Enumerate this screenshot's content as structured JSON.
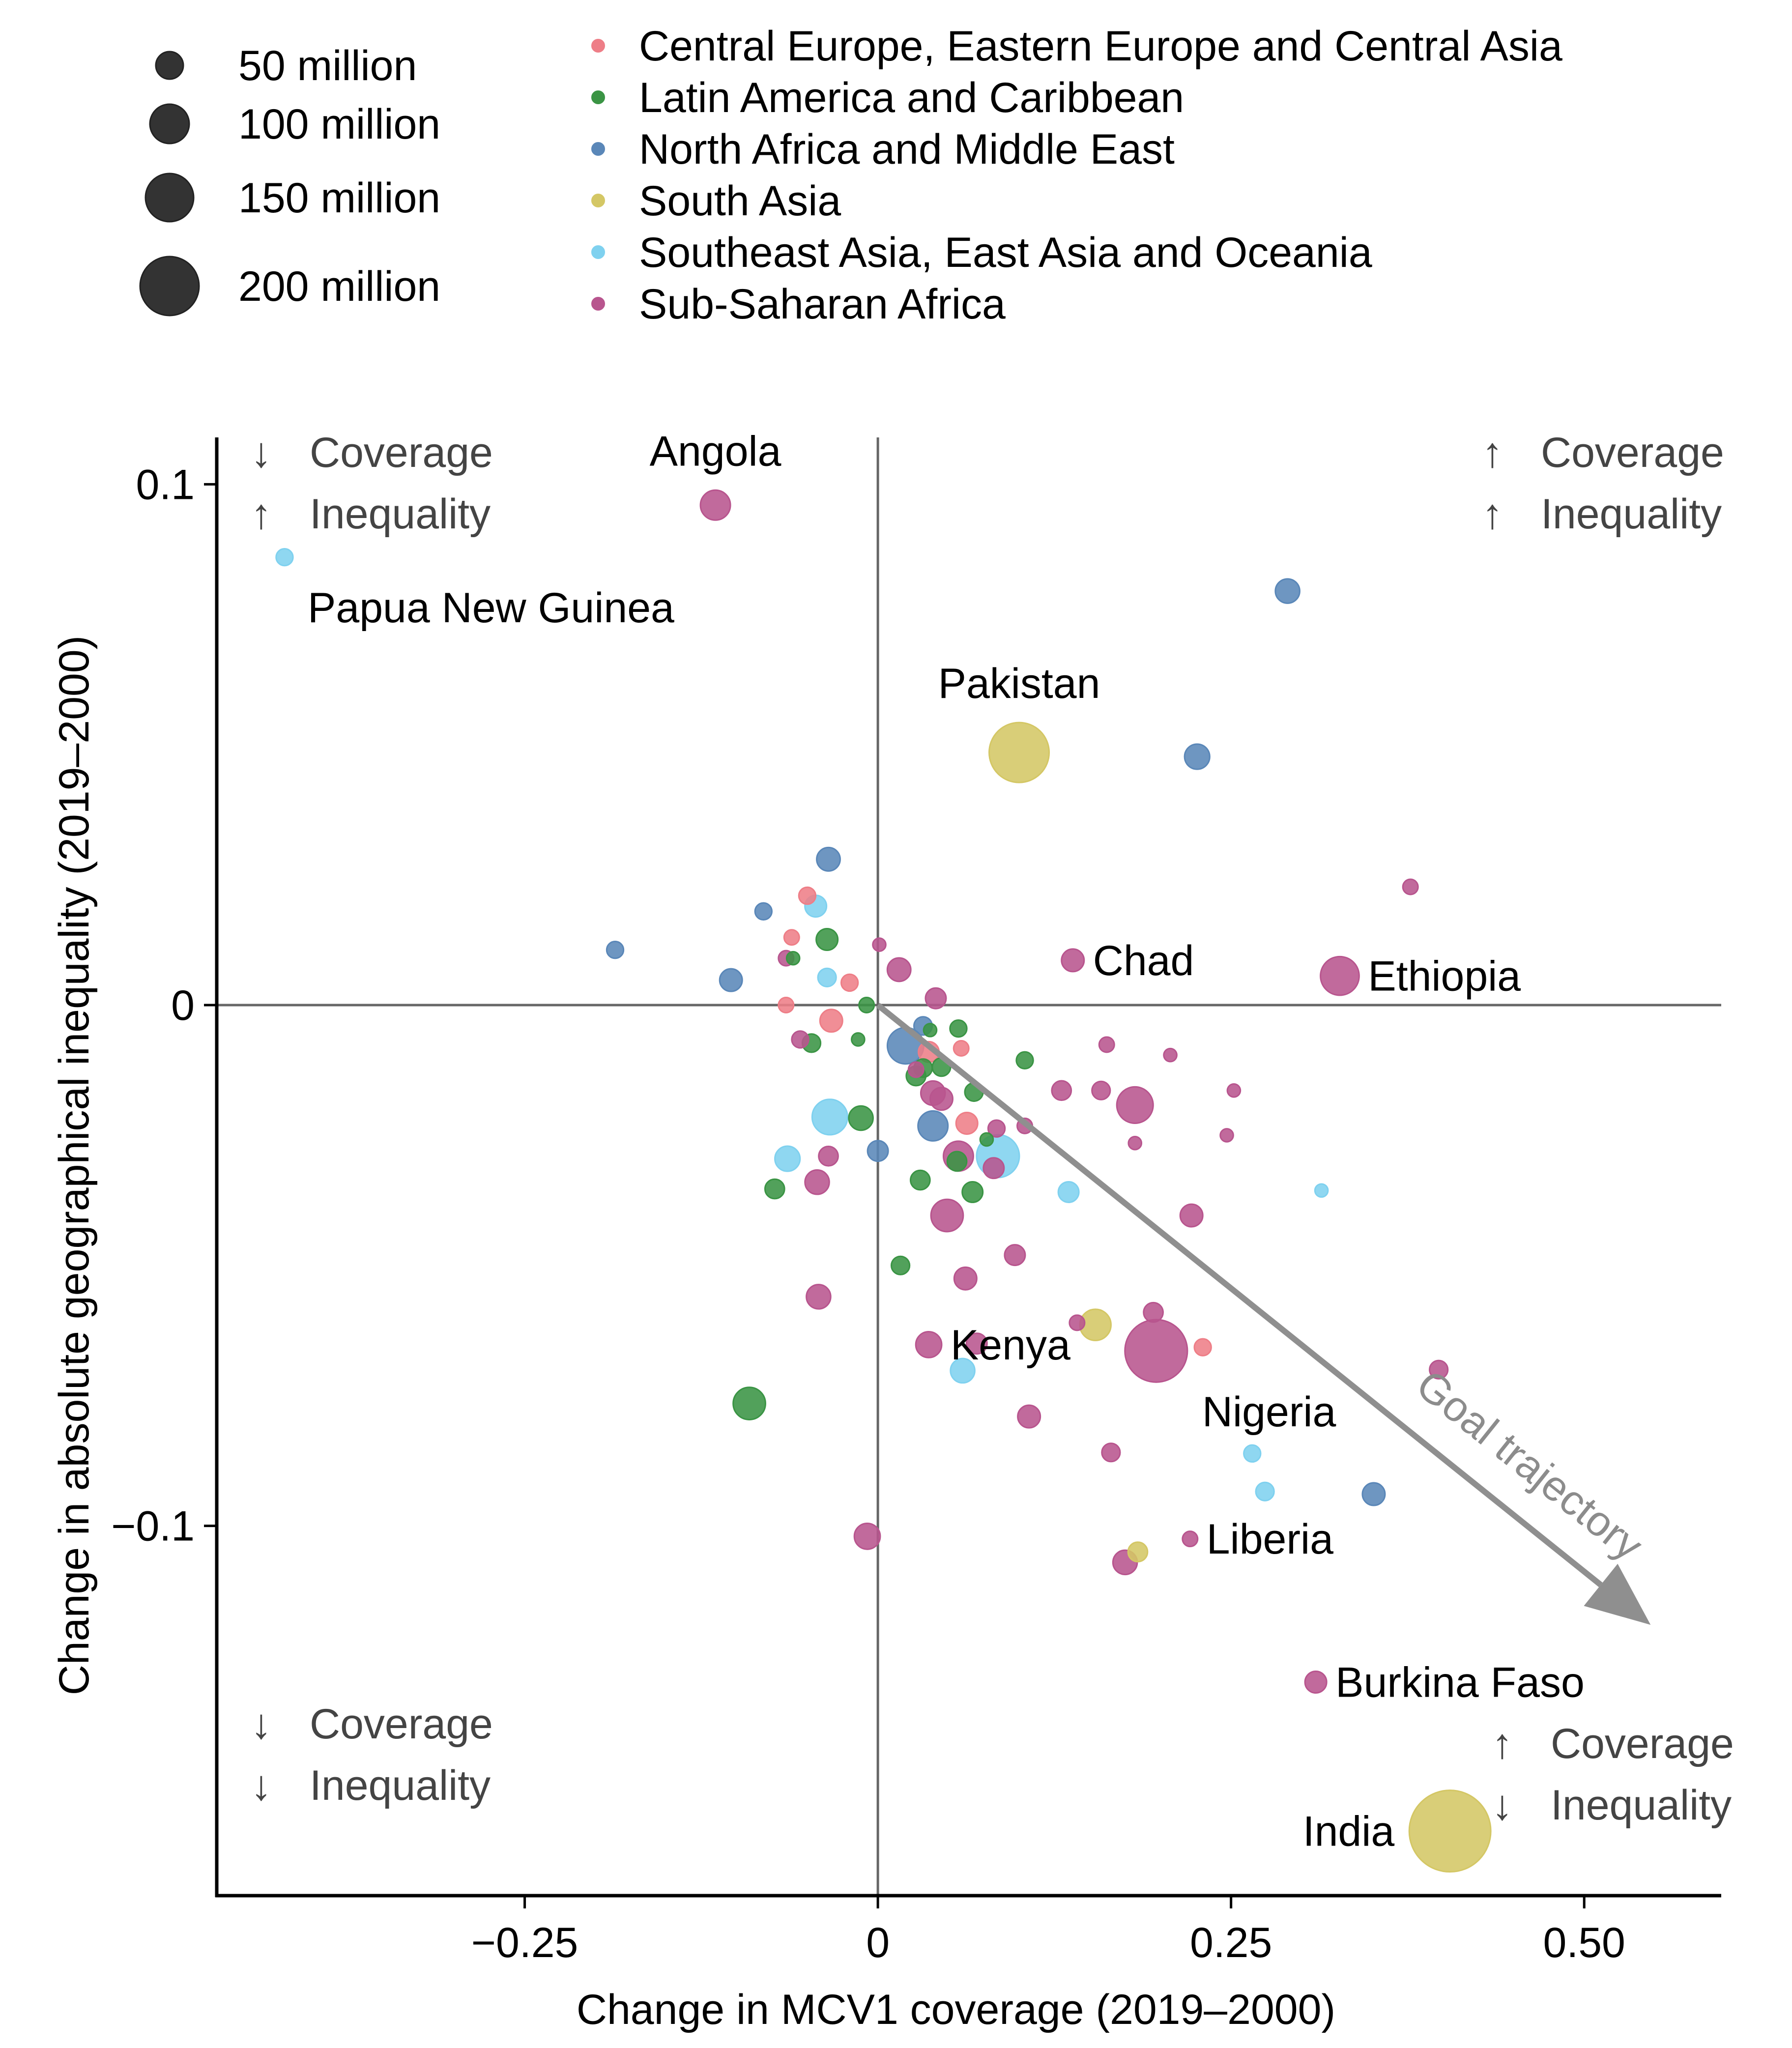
{
  "chart_data": {
    "type": "scatter",
    "subtype": "bubble",
    "title": "",
    "xlabel": "Change in MCV1 coverage (2019–2000)",
    "ylabel": "Change in absolute geographical inequality (2019–2000)",
    "xlim": [
      -0.468,
      0.597
    ],
    "ylim": [
      -0.171,
      0.109
    ],
    "x_ticks": [
      {
        "value": -0.25,
        "label": "−0.25"
      },
      {
        "value": 0,
        "label": "0"
      },
      {
        "value": 0.25,
        "label": "0.25"
      },
      {
        "value": 0.5,
        "label": "0.50"
      }
    ],
    "y_ticks": [
      {
        "value": 0.1,
        "label": "0.1"
      },
      {
        "value": 0,
        "label": "0"
      },
      {
        "value": -0.1,
        "label": "−0.1"
      }
    ],
    "grid": false,
    "reference_lines": {
      "x": 0,
      "y": 0,
      "color": "#666666"
    },
    "size_legend": {
      "placement": "top-left",
      "unit": "million",
      "entries": [
        {
          "value": 50,
          "label": "50 million"
        },
        {
          "value": 100,
          "label": "100 million"
        },
        {
          "value": 150,
          "label": "150 million"
        },
        {
          "value": 200,
          "label": "200 million"
        }
      ],
      "color": "#333333"
    },
    "color_legend": {
      "placement": "top",
      "entries": [
        {
          "key": "CEE",
          "label": "Central Europe, Eastern Europe and Central Asia",
          "color": "#EE7E87"
        },
        {
          "key": "LAC",
          "label": "Latin America and Caribbean",
          "color": "#3A9444"
        },
        {
          "key": "NAME",
          "label": "North Africa and Middle East",
          "color": "#5A87B8"
        },
        {
          "key": "SA",
          "label": "South Asia",
          "color": "#D4C765"
        },
        {
          "key": "SEA",
          "label": "Southeast Asia, East Asia and Oceania",
          "color": "#7FD1EF"
        },
        {
          "key": "SSA",
          "label": "Sub-Saharan Africa",
          "color": "#B8558E"
        }
      ]
    },
    "quadrant_labels": [
      {
        "position": "top-left",
        "line1_arrow": "↓",
        "line1": "Coverage",
        "line2_arrow": "↑",
        "line2": "Inequality"
      },
      {
        "position": "top-right",
        "line1_arrow": "↑",
        "line1": "Coverage",
        "line2_arrow": "↑",
        "line2": "Inequality"
      },
      {
        "position": "bottom-left",
        "line1_arrow": "↓",
        "line1": "Coverage",
        "line2_arrow": "↓",
        "line2": "Inequality"
      },
      {
        "position": "bottom-right",
        "line1_arrow": "↑",
        "line1": "Coverage",
        "line2_arrow": "↓",
        "line2": "Inequality"
      }
    ],
    "goal_trajectory": {
      "label": "Goal trajectory",
      "from": [
        0,
        0
      ],
      "to": [
        0.547,
        -0.119
      ],
      "color": "#8f8f8f"
    },
    "points": [
      {
        "name": "Papua New Guinea",
        "region": "SEA",
        "x": -0.42,
        "y": 0.086,
        "size": 3,
        "label": "Papua New Guinea",
        "label_pos": "below"
      },
      {
        "name": "Angola",
        "region": "SSA",
        "x": -0.115,
        "y": 0.096,
        "size": 18,
        "label": "Angola",
        "label_pos": "above"
      },
      {
        "region": "NAME",
        "x": -0.186,
        "y": 0.0106,
        "size": 3
      },
      {
        "region": "NAME",
        "x": -0.104,
        "y": 0.0048,
        "size": 8
      },
      {
        "region": "NAME",
        "x": -0.081,
        "y": 0.018,
        "size": 3
      },
      {
        "region": "NAME",
        "x": -0.035,
        "y": 0.028,
        "size": 9
      },
      {
        "region": "CEE",
        "x": -0.05,
        "y": 0.021,
        "size": 3
      },
      {
        "region": "SEA",
        "x": -0.044,
        "y": 0.019,
        "size": 7
      },
      {
        "region": "CEE",
        "x": -0.061,
        "y": 0.013,
        "size": 2
      },
      {
        "region": "LAC",
        "x": -0.036,
        "y": 0.0126,
        "size": 7
      },
      {
        "region": "SSA",
        "x": -0.065,
        "y": 0.009,
        "size": 2
      },
      {
        "region": "LAC",
        "x": -0.06,
        "y": 0.009,
        "size": 1
      },
      {
        "region": "SEA",
        "x": -0.036,
        "y": 0.0053,
        "size": 4
      },
      {
        "region": "CEE",
        "x": -0.02,
        "y": 0.0043,
        "size": 3
      },
      {
        "region": "CEE",
        "x": -0.065,
        "y": 0.0,
        "size": 2
      },
      {
        "region": "LAC",
        "x": -0.008,
        "y": 0.0,
        "size": 2
      },
      {
        "region": "CEE",
        "x": -0.033,
        "y": -0.003,
        "size": 8
      },
      {
        "region": "SSA",
        "x": -0.055,
        "y": -0.0066,
        "size": 3
      },
      {
        "region": "LAC",
        "x": -0.047,
        "y": -0.0073,
        "size": 4
      },
      {
        "region": "LAC",
        "x": -0.014,
        "y": -0.0066,
        "size": 1
      },
      {
        "region": "SEA",
        "x": -0.034,
        "y": -0.0215,
        "size": 28
      },
      {
        "region": "LAC",
        "x": -0.012,
        "y": -0.0217,
        "size": 10
      },
      {
        "region": "NAME",
        "x": 0.0,
        "y": -0.028,
        "size": 6
      },
      {
        "region": "SEA",
        "x": -0.064,
        "y": -0.0295,
        "size": 11
      },
      {
        "region": "SSA",
        "x": -0.035,
        "y": -0.029,
        "size": 5
      },
      {
        "region": "SSA",
        "x": -0.043,
        "y": -0.034,
        "size": 10
      },
      {
        "region": "LAC",
        "x": -0.073,
        "y": -0.0353,
        "size": 5
      },
      {
        "region": "SSA",
        "x": -0.042,
        "y": -0.056,
        "size": 10
      },
      {
        "region": "LAC",
        "x": -0.091,
        "y": -0.0765,
        "size": 22
      },
      {
        "region": "SSA",
        "x": -0.0075,
        "y": -0.102,
        "size": 12
      },
      {
        "region": "NAME",
        "x": 0.29,
        "y": 0.0795,
        "size": 10
      },
      {
        "region": "NAME",
        "x": 0.226,
        "y": 0.0477,
        "size": 11
      },
      {
        "name": "Pakistan",
        "region": "SA",
        "x": 0.1,
        "y": 0.0485,
        "size": 100,
        "label": "Pakistan",
        "label_pos": "above"
      },
      {
        "region": "SSA",
        "x": 0.377,
        "y": 0.0227,
        "size": 2
      },
      {
        "name": "Chad",
        "region": "SSA",
        "x": 0.138,
        "y": 0.0086,
        "size": 8,
        "label": "Chad",
        "label_pos": "right"
      },
      {
        "name": "Ethiopia",
        "region": "SSA",
        "x": 0.327,
        "y": 0.0056,
        "size": 35,
        "label": "Ethiopia",
        "label_pos": "right"
      },
      {
        "region": "SSA",
        "x": 0.015,
        "y": 0.0068,
        "size": 9
      },
      {
        "region": "SSA",
        "x": 0.001,
        "y": 0.0116,
        "size": 1
      },
      {
        "region": "SSA",
        "x": 0.041,
        "y": 0.0013,
        "size": 6
      },
      {
        "region": "NAME",
        "x": 0.032,
        "y": -0.004,
        "size": 4
      },
      {
        "region": "LAC",
        "x": 0.037,
        "y": -0.0048,
        "size": 1
      },
      {
        "region": "LAC",
        "x": 0.057,
        "y": -0.0045,
        "size": 3
      },
      {
        "region": "NAME",
        "x": 0.0196,
        "y": -0.0078,
        "size": 30
      },
      {
        "region": "CEE",
        "x": 0.036,
        "y": -0.009,
        "size": 6
      },
      {
        "region": "CEE",
        "x": 0.059,
        "y": -0.0083,
        "size": 2
      },
      {
        "region": "SSA",
        "x": 0.027,
        "y": -0.0124,
        "size": 2
      },
      {
        "region": "LAC",
        "x": 0.032,
        "y": -0.0121,
        "size": 4
      },
      {
        "region": "LAC",
        "x": 0.027,
        "y": -0.0136,
        "size": 5
      },
      {
        "region": "LAC",
        "x": 0.045,
        "y": -0.0119,
        "size": 4
      },
      {
        "region": "LAC",
        "x": 0.104,
        "y": -0.0106,
        "size": 3
      },
      {
        "region": "SSA",
        "x": 0.039,
        "y": -0.0169,
        "size": 10
      },
      {
        "region": "SSA",
        "x": 0.045,
        "y": -0.018,
        "size": 8
      },
      {
        "region": "LAC",
        "x": 0.068,
        "y": -0.0167,
        "size": 4
      },
      {
        "region": "NAME",
        "x": 0.039,
        "y": -0.0232,
        "size": 18
      },
      {
        "region": "CEE",
        "x": 0.063,
        "y": -0.0227,
        "size": 7
      },
      {
        "region": "SSA",
        "x": 0.084,
        "y": -0.0237,
        "size": 3
      },
      {
        "region": "LAC",
        "x": 0.077,
        "y": -0.0258,
        "size": 1
      },
      {
        "region": "LAC",
        "x": 0.056,
        "y": -0.03,
        "size": 5
      },
      {
        "region": "SSA",
        "x": 0.057,
        "y": -0.029,
        "size": 18
      },
      {
        "region": "SEA",
        "x": 0.085,
        "y": -0.029,
        "size": 45
      },
      {
        "region": "SSA",
        "x": 0.082,
        "y": -0.0313,
        "size": 6
      },
      {
        "region": "LAC",
        "x": 0.03,
        "y": -0.0336,
        "size": 5
      },
      {
        "region": "LAC",
        "x": 0.067,
        "y": -0.0359,
        "size": 6
      },
      {
        "region": "SSA",
        "x": 0.049,
        "y": -0.0404,
        "size": 22
      },
      {
        "region": "SEA",
        "x": 0.135,
        "y": -0.0359,
        "size": 6
      },
      {
        "region": "SSA",
        "x": 0.13,
        "y": -0.0164,
        "size": 5
      },
      {
        "region": "SSA",
        "x": 0.158,
        "y": -0.0164,
        "size": 4
      },
      {
        "region": "SSA",
        "x": 0.182,
        "y": -0.0192,
        "size": 30
      },
      {
        "region": "SSA",
        "x": 0.162,
        "y": -0.0076,
        "size": 2
      },
      {
        "region": "SSA",
        "x": 0.207,
        "y": -0.0096,
        "size": 1
      },
      {
        "region": "SSA",
        "x": 0.252,
        "y": -0.0164,
        "size": 1
      },
      {
        "region": "SSA",
        "x": 0.247,
        "y": -0.025,
        "size": 1
      },
      {
        "region": "SSA",
        "x": 0.182,
        "y": -0.0265,
        "size": 1
      },
      {
        "region": "SSA",
        "x": 0.104,
        "y": -0.0232,
        "size": 2
      },
      {
        "region": "SEA",
        "x": 0.314,
        "y": -0.0356,
        "size": 1
      },
      {
        "region": "SSA",
        "x": 0.222,
        "y": -0.0404,
        "size": 8
      },
      {
        "region": "LAC",
        "x": 0.016,
        "y": -0.05,
        "size": 4
      },
      {
        "region": "SSA",
        "x": 0.097,
        "y": -0.048,
        "size": 6
      },
      {
        "region": "SSA",
        "x": 0.062,
        "y": -0.0525,
        "size": 8
      },
      {
        "region": "SA",
        "x": 0.154,
        "y": -0.0614,
        "size": 20
      },
      {
        "region": "SSA",
        "x": 0.141,
        "y": -0.061,
        "size": 2
      },
      {
        "region": "SSA",
        "x": 0.195,
        "y": -0.059,
        "size": 5
      },
      {
        "name": "Kenya",
        "region": "SSA",
        "x": 0.036,
        "y": -0.0652,
        "size": 12,
        "label": "Kenya",
        "label_pos": "right"
      },
      {
        "region": "SSA",
        "x": 0.07,
        "y": -0.065,
        "size": 6
      },
      {
        "name": "Nigeria",
        "region": "SSA",
        "x": 0.197,
        "y": -0.0664,
        "size": 110,
        "label": "Nigeria",
        "label_pos": "below-right"
      },
      {
        "region": "CEE",
        "x": 0.23,
        "y": -0.0657,
        "size": 3
      },
      {
        "region": "SEA",
        "x": 0.06,
        "y": -0.0702,
        "size": 10
      },
      {
        "region": "SSA",
        "x": 0.397,
        "y": -0.07,
        "size": 4
      },
      {
        "region": "SSA",
        "x": 0.107,
        "y": -0.079,
        "size": 8
      },
      {
        "region": "SSA",
        "x": 0.165,
        "y": -0.0859,
        "size": 4
      },
      {
        "region": "SEA",
        "x": 0.265,
        "y": -0.0861,
        "size": 3
      },
      {
        "region": "SEA",
        "x": 0.274,
        "y": -0.0934,
        "size": 4
      },
      {
        "region": "NAME",
        "x": 0.351,
        "y": -0.0939,
        "size": 8
      },
      {
        "name": "Liberia",
        "region": "SSA",
        "x": 0.221,
        "y": -0.1025,
        "size": 2,
        "label": "Liberia",
        "label_pos": "right"
      },
      {
        "region": "SA",
        "x": 0.184,
        "y": -0.105,
        "size": 5
      },
      {
        "region": "SSA",
        "x": 0.175,
        "y": -0.107,
        "size": 10
      },
      {
        "name": "Burkina Faso",
        "region": "SSA",
        "x": 0.31,
        "y": -0.13,
        "size": 7,
        "label": "Burkina Faso",
        "label_pos": "right"
      },
      {
        "name": "India",
        "region": "SA",
        "x": 0.405,
        "y": -0.1586,
        "size": 200,
        "label": "India",
        "label_pos": "left"
      }
    ]
  }
}
